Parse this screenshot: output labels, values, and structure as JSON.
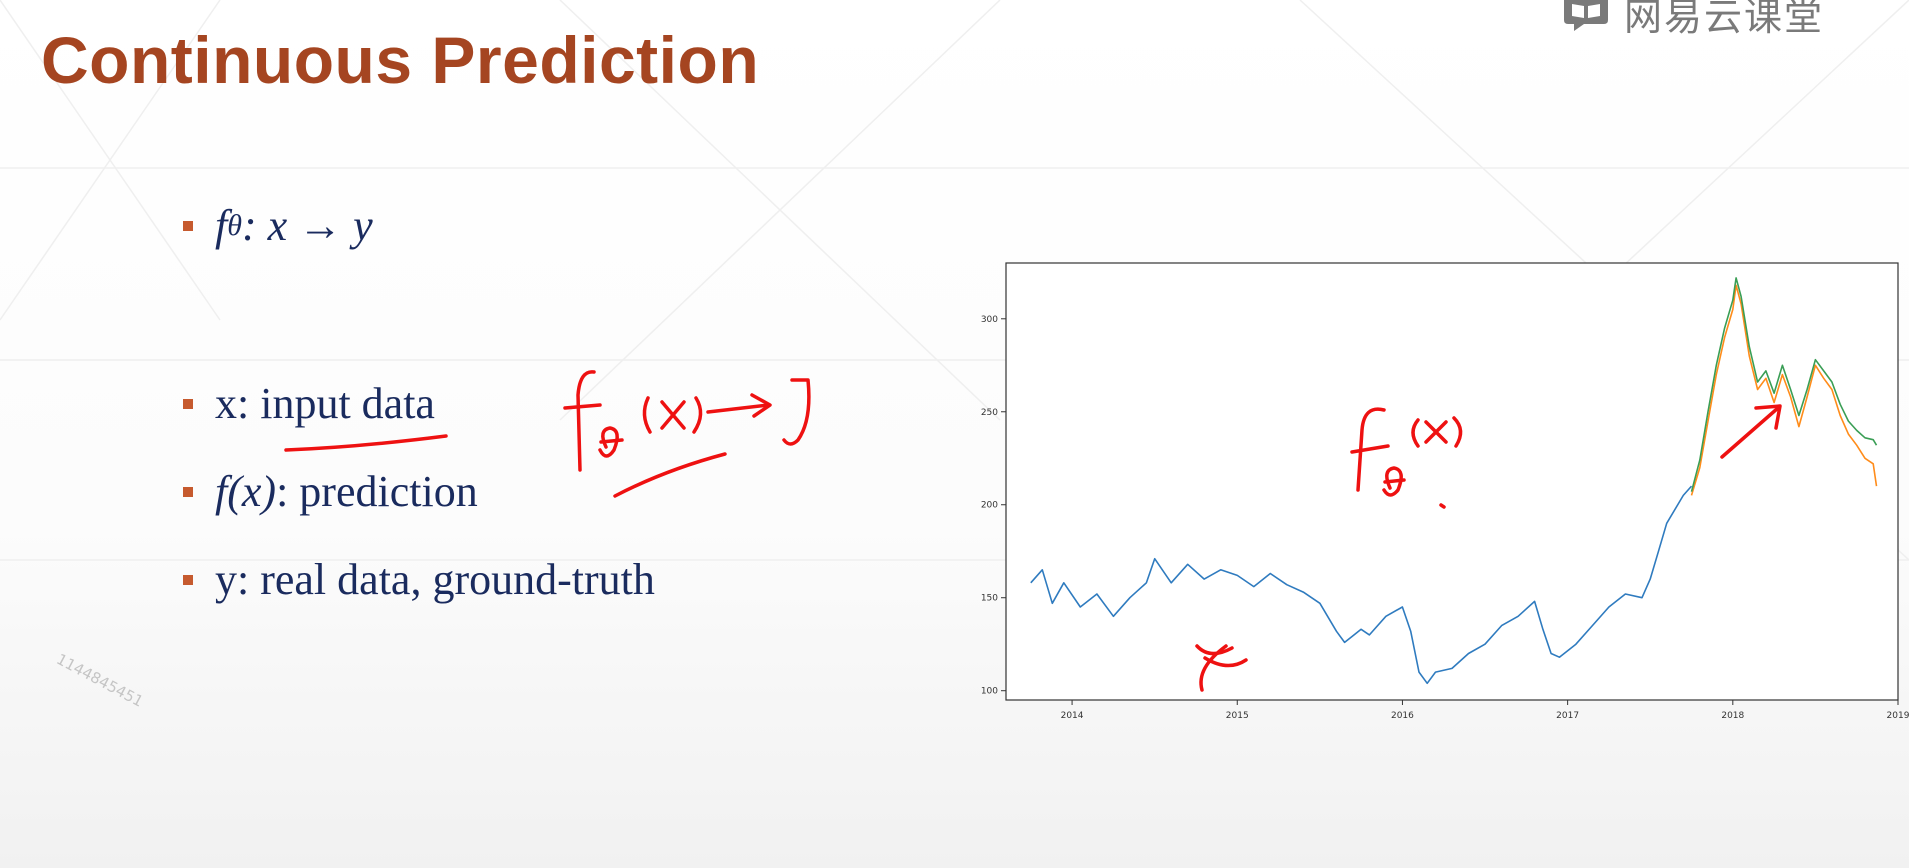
{
  "slide": {
    "title": "Continuous Prediction",
    "watermark": "1144845451"
  },
  "logo": {
    "text": "网易云课堂",
    "icon": "book-icon"
  },
  "bullets": [
    {
      "label": "f",
      "subscript": "θ",
      "rest": ": x → y"
    },
    {
      "label": "x: input data"
    },
    {
      "label": "f",
      "arg": "(x)",
      "rest": ": prediction"
    },
    {
      "label": "y: real data, ground-truth"
    }
  ],
  "annotations": {
    "near_bullets": "fθ(x)→y",
    "on_chart_model": "fθ(x)",
    "on_chart_input": "x"
  },
  "chart_data": {
    "type": "line",
    "title": "",
    "xlabel": "",
    "ylabel": "",
    "xlim": [
      2013.6,
      2019.0
    ],
    "ylim": [
      95,
      330
    ],
    "x_ticks": [
      "2014",
      "2015",
      "2016",
      "2017",
      "2018",
      "2019"
    ],
    "y_ticks": [
      "100",
      "150",
      "200",
      "250",
      "300"
    ],
    "grid": false,
    "legend": "none",
    "series": [
      {
        "color": "#2f7bbf",
        "points": [
          [
            2013.75,
            158
          ],
          [
            2013.82,
            165
          ],
          [
            2013.88,
            147
          ],
          [
            2013.95,
            158
          ],
          [
            2014.05,
            145
          ],
          [
            2014.15,
            152
          ],
          [
            2014.25,
            140
          ],
          [
            2014.35,
            150
          ],
          [
            2014.45,
            158
          ],
          [
            2014.5,
            171
          ],
          [
            2014.6,
            158
          ],
          [
            2014.7,
            168
          ],
          [
            2014.8,
            160
          ],
          [
            2014.9,
            165
          ],
          [
            2015.0,
            162
          ],
          [
            2015.1,
            156
          ],
          [
            2015.2,
            163
          ],
          [
            2015.3,
            157
          ],
          [
            2015.4,
            153
          ],
          [
            2015.5,
            147
          ],
          [
            2015.6,
            132
          ],
          [
            2015.65,
            126
          ],
          [
            2015.75,
            133
          ],
          [
            2015.8,
            130
          ],
          [
            2015.9,
            140
          ],
          [
            2016.0,
            145
          ],
          [
            2016.05,
            132
          ],
          [
            2016.1,
            110
          ],
          [
            2016.15,
            104
          ],
          [
            2016.2,
            110
          ],
          [
            2016.3,
            112
          ],
          [
            2016.4,
            120
          ],
          [
            2016.5,
            125
          ],
          [
            2016.6,
            135
          ],
          [
            2016.7,
            140
          ],
          [
            2016.8,
            148
          ],
          [
            2016.85,
            133
          ],
          [
            2016.9,
            120
          ],
          [
            2016.95,
            118
          ],
          [
            2017.05,
            125
          ],
          [
            2017.15,
            135
          ],
          [
            2017.25,
            145
          ],
          [
            2017.35,
            152
          ],
          [
            2017.45,
            150
          ],
          [
            2017.5,
            160
          ],
          [
            2017.55,
            175
          ],
          [
            2017.6,
            190
          ],
          [
            2017.7,
            205
          ],
          [
            2017.75,
            210
          ]
        ]
      },
      {
        "color": "#ff8c1a",
        "points": [
          [
            2017.75,
            205
          ],
          [
            2017.8,
            220
          ],
          [
            2017.85,
            245
          ],
          [
            2017.9,
            270
          ],
          [
            2017.95,
            290
          ],
          [
            2018.0,
            305
          ],
          [
            2018.02,
            318
          ],
          [
            2018.05,
            308
          ],
          [
            2018.1,
            280
          ],
          [
            2018.15,
            262
          ],
          [
            2018.2,
            268
          ],
          [
            2018.25,
            255
          ],
          [
            2018.3,
            270
          ],
          [
            2018.35,
            258
          ],
          [
            2018.4,
            242
          ],
          [
            2018.45,
            258
          ],
          [
            2018.5,
            275
          ],
          [
            2018.55,
            268
          ],
          [
            2018.6,
            262
          ],
          [
            2018.65,
            248
          ],
          [
            2018.7,
            238
          ],
          [
            2018.75,
            232
          ],
          [
            2018.8,
            225
          ],
          [
            2018.85,
            222
          ],
          [
            2018.87,
            210
          ]
        ]
      },
      {
        "color": "#3a9e55",
        "points": [
          [
            2017.75,
            207
          ],
          [
            2017.8,
            224
          ],
          [
            2017.85,
            250
          ],
          [
            2017.9,
            275
          ],
          [
            2017.95,
            295
          ],
          [
            2018.0,
            310
          ],
          [
            2018.02,
            322
          ],
          [
            2018.05,
            312
          ],
          [
            2018.1,
            285
          ],
          [
            2018.15,
            266
          ],
          [
            2018.2,
            272
          ],
          [
            2018.25,
            260
          ],
          [
            2018.3,
            275
          ],
          [
            2018.35,
            262
          ],
          [
            2018.4,
            248
          ],
          [
            2018.45,
            262
          ],
          [
            2018.5,
            278
          ],
          [
            2018.55,
            272
          ],
          [
            2018.6,
            266
          ],
          [
            2018.65,
            254
          ],
          [
            2018.7,
            245
          ],
          [
            2018.75,
            240
          ],
          [
            2018.8,
            236
          ],
          [
            2018.85,
            235
          ],
          [
            2018.87,
            232
          ]
        ]
      }
    ]
  }
}
